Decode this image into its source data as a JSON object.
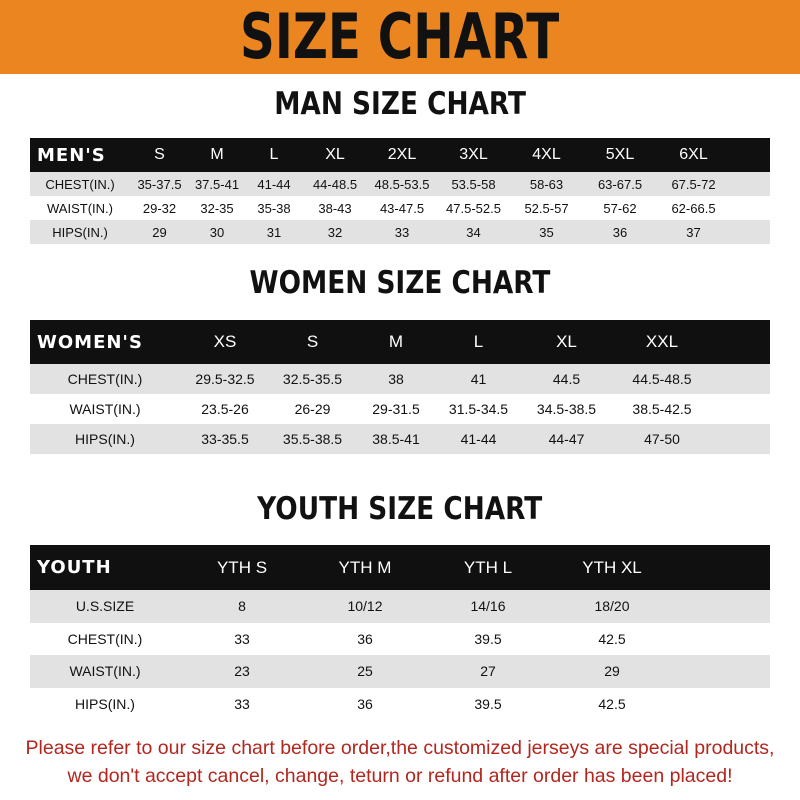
{
  "banner": {
    "title": "SIZE CHART",
    "color": "#ea851f"
  },
  "men": {
    "title": "MAN SIZE CHART",
    "header": [
      "MEN'S",
      "S",
      "M",
      "L",
      "XL",
      "2XL",
      "3XL",
      "4XL",
      "5XL",
      "6XL"
    ],
    "rows": [
      [
        "CHEST(IN.)",
        "35-37.5",
        "37.5-41",
        "41-44",
        "44-48.5",
        "48.5-53.5",
        "53.5-58",
        "58-63",
        "63-67.5",
        "67.5-72"
      ],
      [
        "WAIST(IN.)",
        "29-32",
        "32-35",
        "35-38",
        "38-43",
        "43-47.5",
        "47.5-52.5",
        "52.5-57",
        "57-62",
        "62-66.5"
      ],
      [
        "HIPS(IN.)",
        "29",
        "30",
        "31",
        "32",
        "33",
        "34",
        "35",
        "36",
        "37"
      ]
    ]
  },
  "women": {
    "title": "WOMEN SIZE CHART",
    "header": [
      "WOMEN'S",
      "XS",
      "S",
      "M",
      "L",
      "XL",
      "XXL"
    ],
    "rows": [
      [
        "CHEST(IN.)",
        "29.5-32.5",
        "32.5-35.5",
        "38",
        "41",
        "44.5",
        "44.5-48.5"
      ],
      [
        "WAIST(IN.)",
        "23.5-26",
        "26-29",
        "29-31.5",
        "31.5-34.5",
        "34.5-38.5",
        "38.5-42.5"
      ],
      [
        "HIPS(IN.)",
        "33-35.5",
        "35.5-38.5",
        "38.5-41",
        "41-44",
        "44-47",
        "47-50"
      ]
    ]
  },
  "youth": {
    "title": "YOUTH SIZE CHART",
    "header": [
      "YOUTH",
      "YTH S",
      "YTH M",
      "YTH L",
      "YTH XL"
    ],
    "rows": [
      [
        "U.S.SIZE",
        "8",
        "10/12",
        "14/16",
        "18/20"
      ],
      [
        "CHEST(IN.)",
        "33",
        "36",
        "39.5",
        "42.5"
      ],
      [
        "WAIST(IN.)",
        "23",
        "25",
        "27",
        "29"
      ],
      [
        "HIPS(IN.)",
        "33",
        "36",
        "39.5",
        "42.5"
      ]
    ]
  },
  "note": {
    "line1": "Please refer to our size chart before order,the customized jerseys are special products,",
    "line2": "we don't accept cancel, change, teturn or refund after order has been placed!",
    "color": "#b3261e"
  }
}
